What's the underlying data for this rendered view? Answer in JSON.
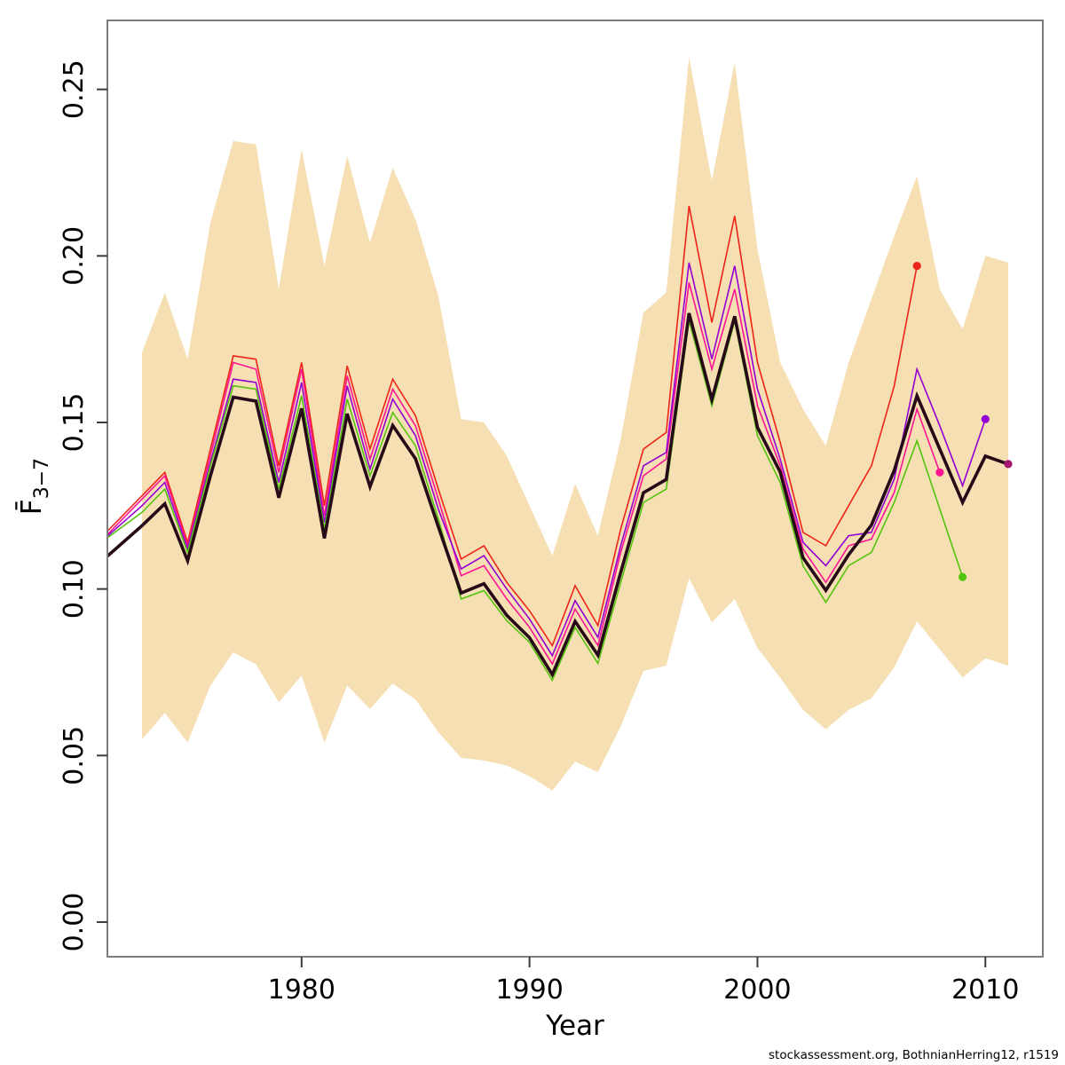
{
  "footer": "stockassessment.org, BothnianHerring12, r1519",
  "chart_data": {
    "type": "line",
    "title": "",
    "xlabel": "Year",
    "ylabel": {
      "main": "F̄",
      "sub": "3−7"
    },
    "grid": false,
    "legend": "none",
    "xlim": [
      1971.48,
      2012.52
    ],
    "ylim": [
      -0.0104,
      0.2707
    ],
    "x_ticks": {
      "values": [
        1980,
        1990,
        2000,
        2010
      ],
      "labels": [
        "1980",
        "1990",
        "2000",
        "2010"
      ]
    },
    "y_ticks": {
      "values": [
        0.0,
        0.05,
        0.1,
        0.15,
        0.2,
        0.25
      ],
      "labels": [
        "0.00",
        "0.05",
        "0.10",
        "0.15",
        "0.20",
        "0.25"
      ]
    },
    "band": {
      "name": "confidence-band",
      "color": "#f5dfb3",
      "start_year": 1973,
      "upper": [
        0.171,
        0.189,
        0.169,
        0.21,
        0.2345,
        0.2335,
        0.19,
        0.232,
        0.197,
        0.23,
        0.204,
        0.2265,
        0.211,
        0.188,
        0.151,
        0.15,
        0.14,
        0.125,
        0.11,
        0.1316,
        0.116,
        0.145,
        0.183,
        0.189,
        0.2597,
        0.2226,
        0.2581,
        0.202,
        0.168,
        0.154,
        0.143,
        0.168,
        0.187,
        0.206,
        0.224,
        0.19,
        0.178,
        0.2,
        0.198
      ],
      "lower": [
        0.0548,
        0.0628,
        0.0539,
        0.071,
        0.081,
        0.0774,
        0.066,
        0.074,
        0.0539,
        0.071,
        0.064,
        0.0716,
        0.0668,
        0.057,
        0.0493,
        0.0485,
        0.047,
        0.0438,
        0.0395,
        0.0482,
        0.045,
        0.0588,
        0.0754,
        0.077,
        0.1032,
        0.09,
        0.097,
        0.0823,
        0.0734,
        0.0637,
        0.0579,
        0.0637,
        0.0672,
        0.0765,
        0.0903,
        0.0819,
        0.0734,
        0.0792,
        0.077
      ]
    },
    "series": [
      {
        "name": "retro-2007",
        "color": "#ee2419",
        "width": 1.6,
        "end_dot": true,
        "start_year": 1972,
        "values": [
          0.121,
          0.128,
          0.135,
          0.114,
          0.142,
          0.17,
          0.169,
          0.137,
          0.168,
          0.125,
          0.167,
          0.142,
          0.163,
          0.152,
          0.13,
          0.109,
          0.113,
          0.102,
          0.0935,
          0.083,
          0.101,
          0.089,
          0.118,
          0.142,
          0.147,
          0.215,
          0.18,
          0.212,
          0.168,
          0.144,
          0.117,
          0.113,
          0.125,
          0.137,
          0.161,
          0.197
        ]
      },
      {
        "name": "retro-2008",
        "color": "#ff1493",
        "width": 1.6,
        "end_dot": true,
        "start_year": 1972,
        "values": [
          0.12,
          0.127,
          0.134,
          0.113,
          0.14,
          0.168,
          0.166,
          0.135,
          0.166,
          0.122,
          0.164,
          0.139,
          0.16,
          0.149,
          0.127,
          0.104,
          0.107,
          0.097,
          0.0885,
          0.0775,
          0.094,
          0.083,
          0.111,
          0.134,
          0.139,
          0.192,
          0.166,
          0.19,
          0.155,
          0.137,
          0.112,
          0.102,
          0.113,
          0.115,
          0.129,
          0.154,
          0.135
        ]
      },
      {
        "name": "retro-2010",
        "color": "#9400d3",
        "width": 1.6,
        "end_dot": true,
        "start_year": 1972,
        "values": [
          0.119,
          0.125,
          0.132,
          0.112,
          0.138,
          0.163,
          0.162,
          0.132,
          0.162,
          0.12,
          0.161,
          0.136,
          0.157,
          0.146,
          0.124,
          0.106,
          0.11,
          0.1,
          0.091,
          0.08,
          0.0965,
          0.0855,
          0.113,
          0.137,
          0.141,
          0.198,
          0.169,
          0.197,
          0.16,
          0.139,
          0.114,
          0.107,
          0.116,
          0.117,
          0.133,
          0.166,
          0.149,
          0.131,
          0.151
        ]
      },
      {
        "name": "retro-2009",
        "color": "#55c40e",
        "width": 1.6,
        "end_dot": true,
        "start_year": 1972,
        "values": [
          0.118,
          0.123,
          0.13,
          0.111,
          0.137,
          0.161,
          0.16,
          0.13,
          0.158,
          0.118,
          0.157,
          0.134,
          0.153,
          0.143,
          0.121,
          0.097,
          0.0995,
          0.0905,
          0.084,
          0.0726,
          0.0885,
          0.0777,
          0.102,
          0.126,
          0.13,
          0.1805,
          0.155,
          0.1805,
          0.146,
          0.132,
          0.107,
          0.096,
          0.107,
          0.111,
          0.126,
          0.1445,
          0.124,
          0.1036
        ]
      },
      {
        "name": "final-run-2011",
        "color": "#260a18",
        "dot_color": "#a3156f",
        "width": 3.6,
        "end_dot": true,
        "start_year": 1972,
        "values": [
          0.113,
          0.119,
          0.1256,
          0.1085,
          0.134,
          0.1576,
          0.1564,
          0.1274,
          0.1542,
          0.1152,
          0.1526,
          0.1307,
          0.1491,
          0.1391,
          0.1187,
          0.0988,
          0.1016,
          0.0921,
          0.0854,
          0.0743,
          0.0903,
          0.0801,
          0.105,
          0.1289,
          0.1329,
          0.1828,
          0.1569,
          0.1819,
          0.1485,
          0.1351,
          0.1094,
          0.0996,
          0.1103,
          0.1192,
          0.1356,
          0.158,
          0.142,
          0.126,
          0.1399,
          0.1375
        ]
      }
    ],
    "axis_style": {
      "box_color": "#7d7d7d",
      "tick_color": "#3a3a3a"
    }
  }
}
